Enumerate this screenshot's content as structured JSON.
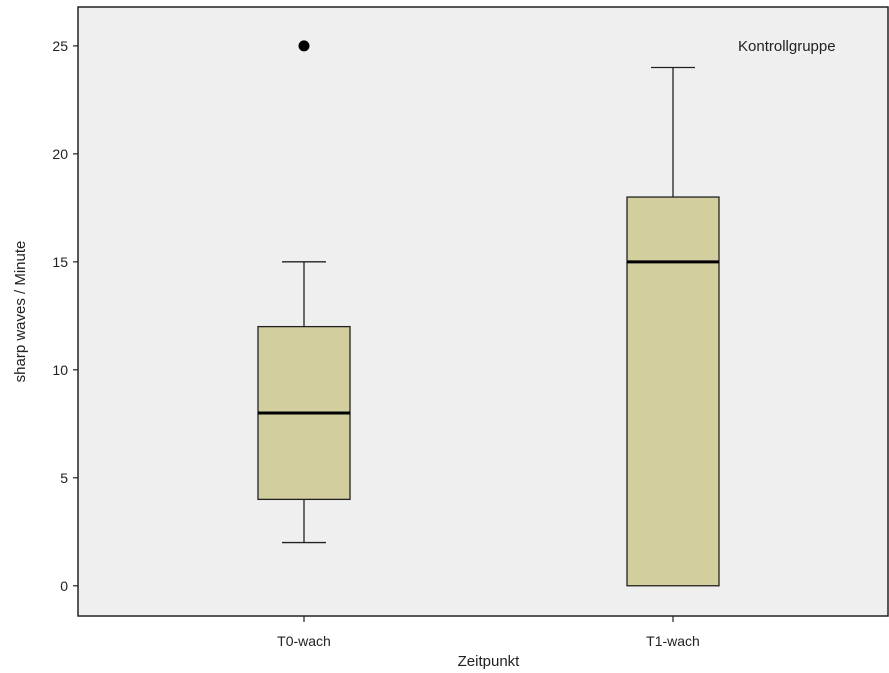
{
  "chart_data": {
    "type": "boxplot",
    "xlabel": "Zeitpunkt",
    "ylabel": "sharp waves / Minute",
    "ylim": [
      -1.4,
      26.8
    ],
    "yticks": [
      0,
      5,
      10,
      15,
      20,
      25
    ],
    "annotation": "Kontrollgruppe",
    "categories": [
      "T0-wach",
      "T1-wach"
    ],
    "boxes": [
      {
        "category": "T0-wach",
        "min": 2,
        "q1": 4,
        "median": 8,
        "q3": 12,
        "max": 15,
        "outliers": [
          25
        ]
      },
      {
        "category": "T1-wach",
        "min": 0,
        "q1": 0,
        "median": 15,
        "q3": 18,
        "max": 24,
        "outliers": []
      }
    ],
    "grid": false,
    "colors": {
      "plot_background": "#efefef",
      "box_fill": "#d3ce9e",
      "stroke": "#222222"
    }
  }
}
